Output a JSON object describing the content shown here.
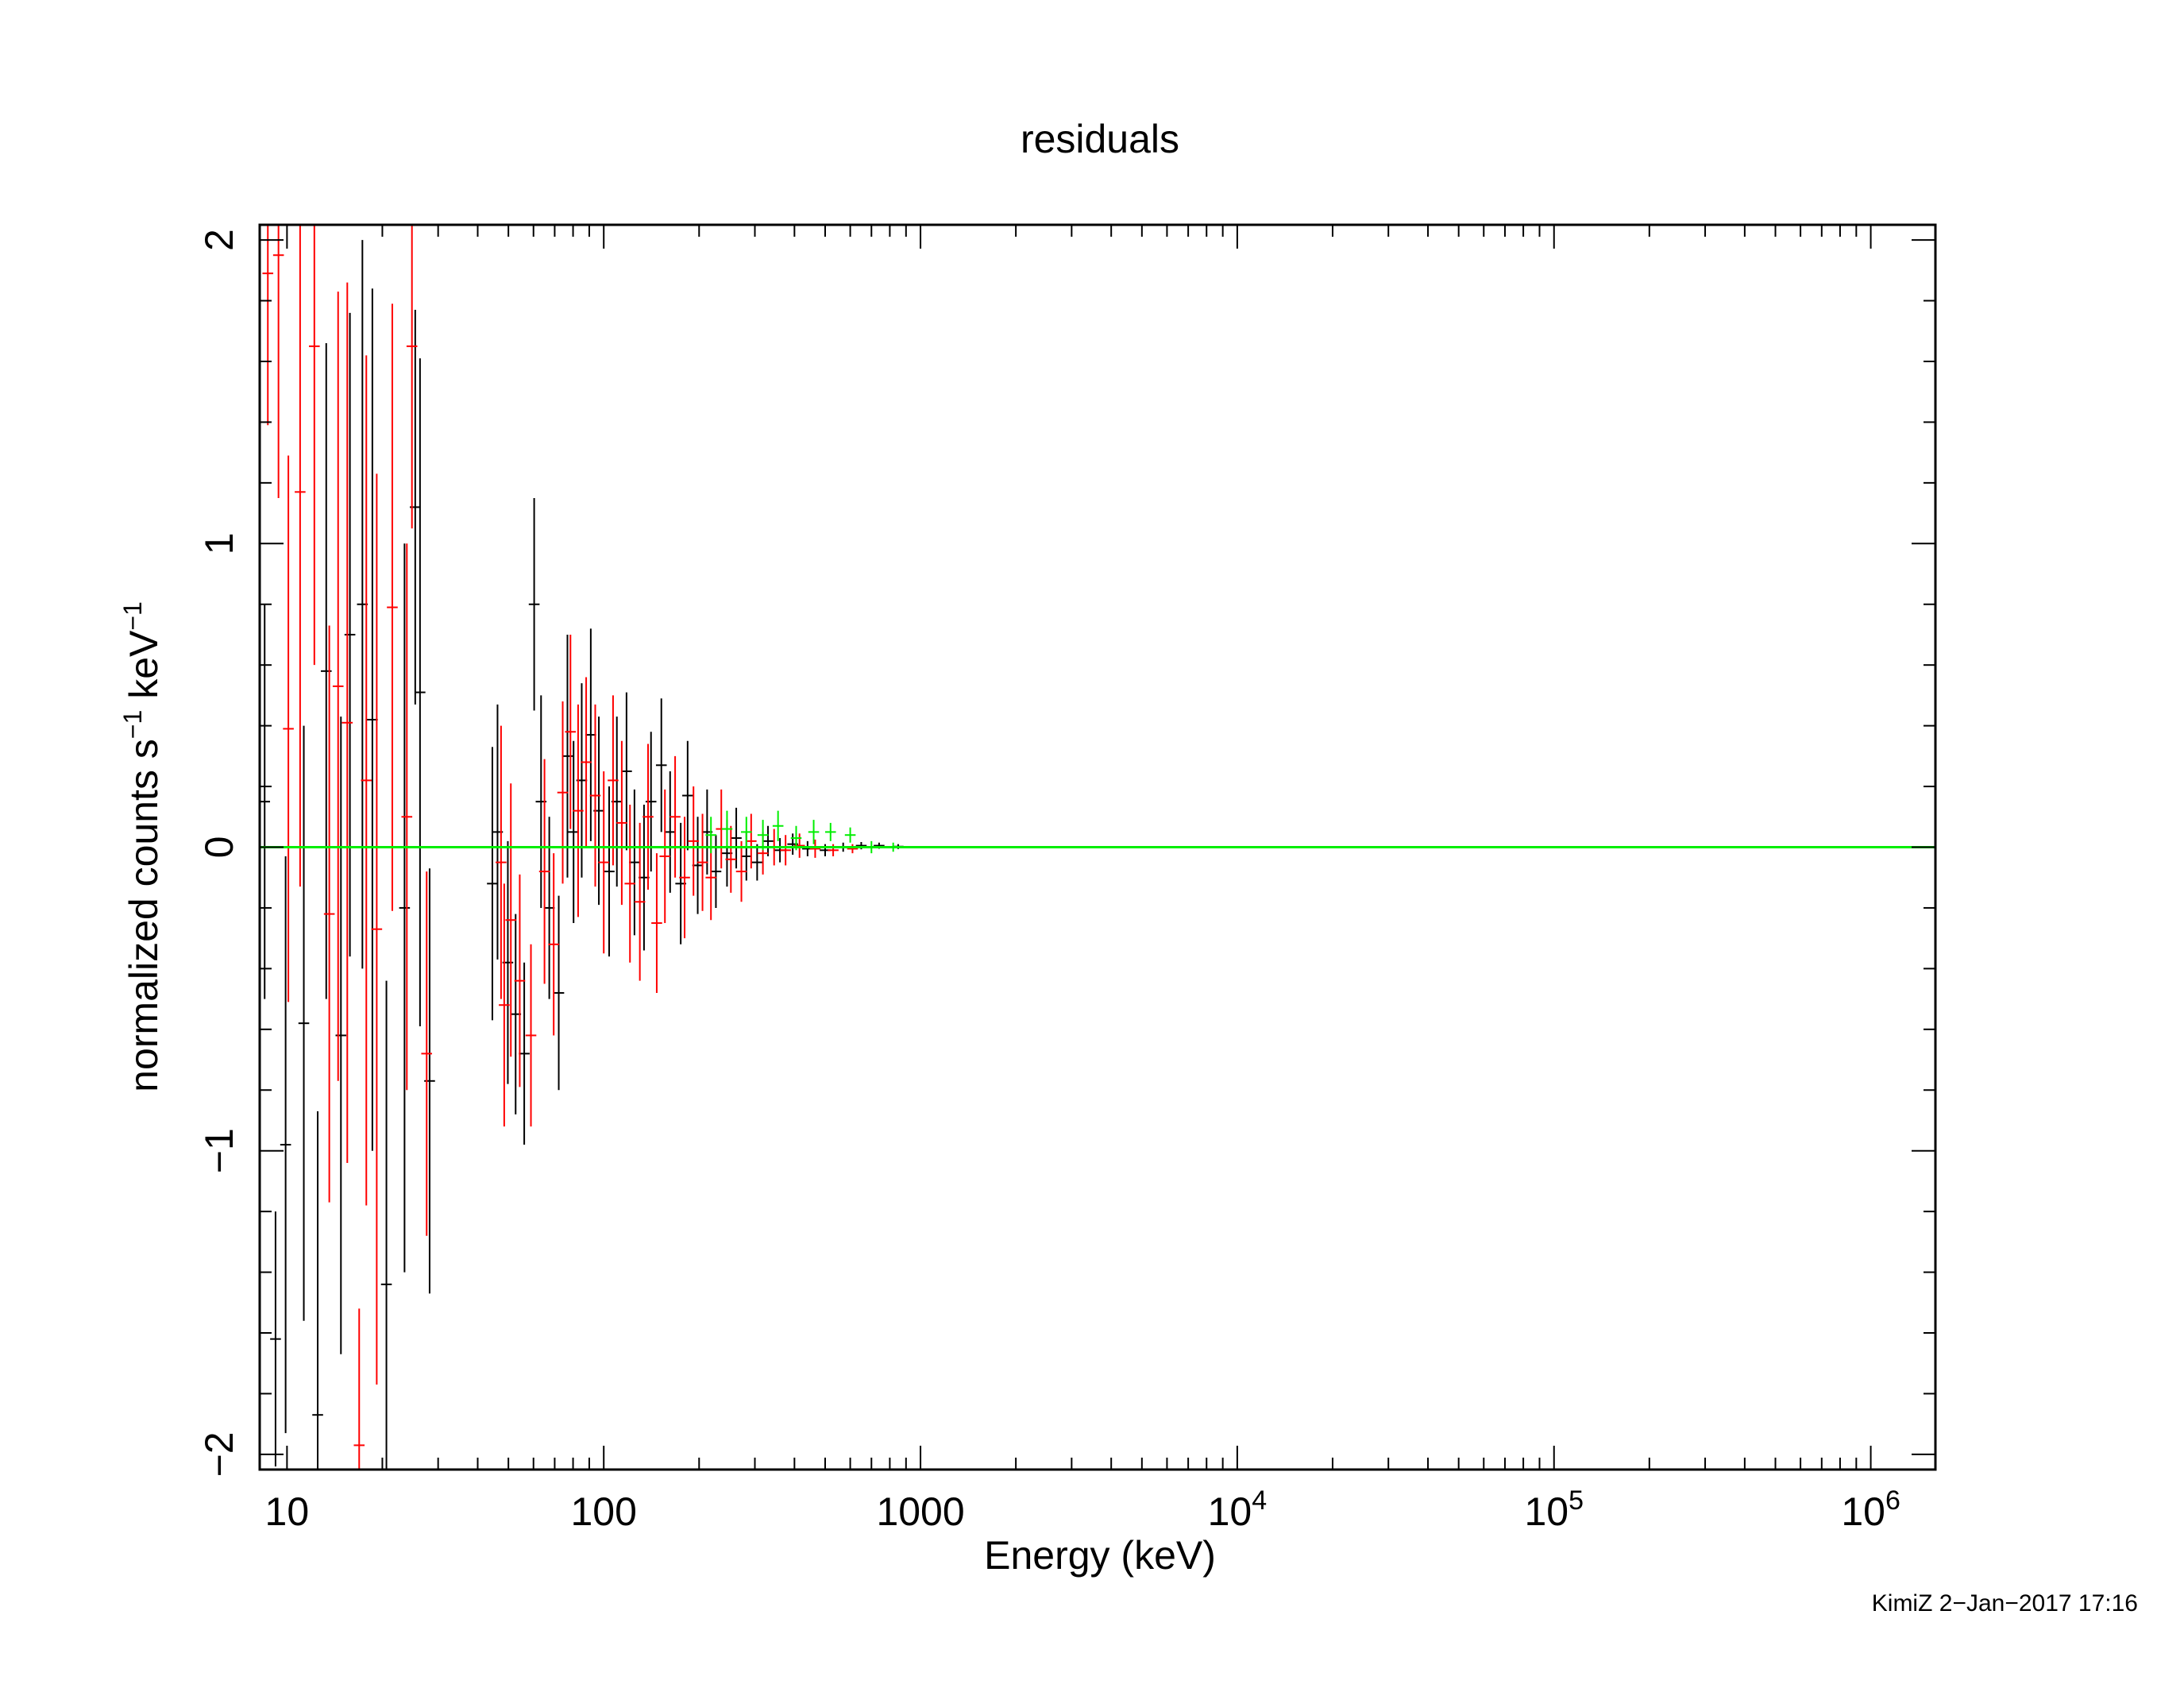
{
  "chart_data": {
    "type": "scatter",
    "title": "residuals",
    "xlabel": "Energy (keV)",
    "ylabel": {
      "text_main": "normalized counts s",
      "sup1": "−1",
      "text_mid": " keV",
      "sup2": "−1"
    },
    "x_scale": "log",
    "xlim": [
      8.2,
      1600000
    ],
    "ylim": [
      -2.05,
      2.05
    ],
    "grid": false,
    "x_tick_labels": [
      {
        "value": 10,
        "base": "10",
        "exp": ""
      },
      {
        "value": 100,
        "base": "100",
        "exp": ""
      },
      {
        "value": 1000,
        "base": "1000",
        "exp": ""
      },
      {
        "value": 10000,
        "base": "10",
        "exp": "4"
      },
      {
        "value": 100000,
        "base": "10",
        "exp": "5"
      },
      {
        "value": 1000000,
        "base": "10",
        "exp": "6"
      }
    ],
    "y_tick_labels": [
      {
        "value": 2,
        "label": "2"
      },
      {
        "value": 1,
        "label": "1"
      },
      {
        "value": 0,
        "label": "0"
      },
      {
        "value": -1,
        "label": "−1"
      },
      {
        "value": -2,
        "label": "−2"
      }
    ],
    "colors": {
      "series1": "#000000",
      "series2": "#ff0000",
      "series3": "#00ee00",
      "axes": "#000000"
    },
    "model_line": {
      "name": "",
      "color": "#00ee00",
      "y": 0
    },
    "series": [
      {
        "color": "#000000",
        "points": [
          [
            8.5,
            0.15,
            0.65
          ],
          [
            9.2,
            -1.62,
            0.42
          ],
          [
            9.9,
            -0.98,
            0.95
          ],
          [
            11.3,
            -0.58,
            0.98
          ],
          [
            12.5,
            -1.87,
            1.0
          ],
          [
            13.3,
            0.58,
            1.08
          ],
          [
            14.8,
            -0.62,
            1.05
          ],
          [
            15.8,
            0.7,
            1.06
          ],
          [
            17.3,
            0.8,
            1.2
          ],
          [
            18.6,
            0.42,
            1.42
          ],
          [
            20.6,
            -1.44,
            1.0
          ],
          [
            23.5,
            -0.2,
            1.2
          ],
          [
            25.4,
            1.12,
            0.65
          ],
          [
            26.3,
            0.51,
            1.1
          ],
          [
            28.2,
            -0.77,
            0.7
          ],
          [
            44.5,
            -0.12,
            0.45
          ],
          [
            46.2,
            0.05,
            0.42
          ],
          [
            49.8,
            -0.38,
            0.4
          ],
          [
            52.7,
            -0.55,
            0.33
          ],
          [
            56.1,
            -0.68,
            0.3
          ],
          [
            60.3,
            0.8,
            0.35
          ],
          [
            63.4,
            0.15,
            0.35
          ],
          [
            67.3,
            -0.2,
            0.3
          ],
          [
            72.1,
            -0.48,
            0.32
          ],
          [
            76.8,
            0.3,
            0.4
          ],
          [
            80.3,
            0.05,
            0.3
          ],
          [
            85.2,
            0.22,
            0.32
          ],
          [
            91.0,
            0.37,
            0.35
          ],
          [
            96.5,
            0.12,
            0.31
          ],
          [
            104.0,
            -0.08,
            0.28
          ],
          [
            110.0,
            0.15,
            0.28
          ],
          [
            118.0,
            0.25,
            0.26
          ],
          [
            125.0,
            -0.05,
            0.24
          ],
          [
            134.0,
            -0.1,
            0.24
          ],
          [
            141.0,
            0.15,
            0.23
          ],
          [
            152.0,
            0.27,
            0.22
          ],
          [
            162.0,
            0.05,
            0.2
          ],
          [
            175.0,
            -0.12,
            0.2
          ],
          [
            184.0,
            0.17,
            0.18
          ],
          [
            198.0,
            -0.06,
            0.16
          ],
          [
            212.0,
            0.05,
            0.14
          ],
          [
            226.0,
            -0.08,
            0.12
          ],
          [
            245.0,
            -0.02,
            0.11
          ],
          [
            262.0,
            0.03,
            0.1
          ],
          [
            282.0,
            -0.03,
            0.08
          ],
          [
            305.0,
            -0.05,
            0.06
          ],
          [
            330.0,
            0.02,
            0.05
          ],
          [
            360.0,
            -0.01,
            0.04
          ],
          [
            395.0,
            0.01,
            0.035
          ],
          [
            440.0,
            -0.005,
            0.025
          ],
          [
            500.0,
            -0.01,
            0.02
          ],
          [
            570.0,
            0.0,
            0.015
          ],
          [
            650.0,
            0.005,
            0.012
          ],
          [
            740.0,
            0.005,
            0.01
          ],
          [
            850.0,
            0.002,
            0.008
          ]
        ]
      },
      {
        "color": "#ff0000",
        "points": [
          [
            8.7,
            1.89,
            0.5
          ],
          [
            9.4,
            1.95,
            0.8
          ],
          [
            10.1,
            0.39,
            0.9
          ],
          [
            11.0,
            1.17,
            1.3
          ],
          [
            12.2,
            1.65,
            1.05
          ],
          [
            13.6,
            -0.22,
            0.95
          ],
          [
            14.5,
            0.53,
            1.3
          ],
          [
            15.5,
            0.41,
            1.45
          ],
          [
            16.9,
            -1.97,
            0.45
          ],
          [
            17.8,
            0.22,
            1.4
          ],
          [
            19.2,
            -0.27,
            1.5
          ],
          [
            21.5,
            0.79,
            1.0
          ],
          [
            23.9,
            0.1,
            0.9
          ],
          [
            24.8,
            1.65,
            0.6
          ],
          [
            27.6,
            -0.68,
            0.6
          ],
          [
            47.4,
            -0.05,
            0.45
          ],
          [
            48.5,
            -0.52,
            0.4
          ],
          [
            50.9,
            -0.24,
            0.45
          ],
          [
            54.3,
            -0.44,
            0.35
          ],
          [
            58.9,
            -0.62,
            0.3
          ],
          [
            65.0,
            -0.08,
            0.37
          ],
          [
            69.5,
            -0.32,
            0.3
          ],
          [
            74.2,
            0.18,
            0.3
          ],
          [
            78.5,
            0.38,
            0.32
          ],
          [
            83.0,
            0.12,
            0.35
          ],
          [
            88.0,
            0.28,
            0.28
          ],
          [
            94.0,
            0.17,
            0.3
          ],
          [
            100.0,
            -0.05,
            0.3
          ],
          [
            107.0,
            0.22,
            0.28
          ],
          [
            114.0,
            0.08,
            0.27
          ],
          [
            121.0,
            -0.12,
            0.26
          ],
          [
            130.0,
            -0.18,
            0.26
          ],
          [
            138.0,
            0.1,
            0.24
          ],
          [
            147.0,
            -0.25,
            0.23
          ],
          [
            156.0,
            -0.03,
            0.22
          ],
          [
            168.0,
            0.1,
            0.2
          ],
          [
            180.0,
            -0.1,
            0.2
          ],
          [
            192.0,
            0.02,
            0.18
          ],
          [
            205.0,
            -0.05,
            0.16
          ],
          [
            218.0,
            -0.1,
            0.14
          ],
          [
            235.0,
            0.06,
            0.13
          ],
          [
            252.0,
            -0.04,
            0.11
          ],
          [
            272.0,
            -0.08,
            0.1
          ],
          [
            292.0,
            0.02,
            0.09
          ],
          [
            318.0,
            -0.02,
            0.07
          ],
          [
            345.0,
            0.0,
            0.06
          ],
          [
            375.0,
            -0.01,
            0.05
          ],
          [
            415.0,
            0.005,
            0.04
          ],
          [
            465.0,
            -0.005,
            0.03
          ],
          [
            530.0,
            -0.01,
            0.02
          ],
          [
            610.0,
            -0.005,
            0.015
          ]
        ]
      },
      {
        "color": "#00ee00",
        "points": [
          [
            218.0,
            0.04,
            0.06
          ],
          [
            245.0,
            0.06,
            0.06
          ],
          [
            282.0,
            0.05,
            0.05
          ],
          [
            318.0,
            0.04,
            0.05
          ],
          [
            355.0,
            0.07,
            0.05
          ],
          [
            405.0,
            0.03,
            0.04
          ],
          [
            460.0,
            0.05,
            0.04
          ],
          [
            520.0,
            0.05,
            0.03
          ],
          [
            600.0,
            0.04,
            0.025
          ],
          [
            700.0,
            0.0,
            0.02
          ],
          [
            820.0,
            0.0,
            0.015
          ]
        ]
      }
    ]
  },
  "footer": {
    "stamp": "KimiZ  2−Jan−2017 17:16"
  }
}
